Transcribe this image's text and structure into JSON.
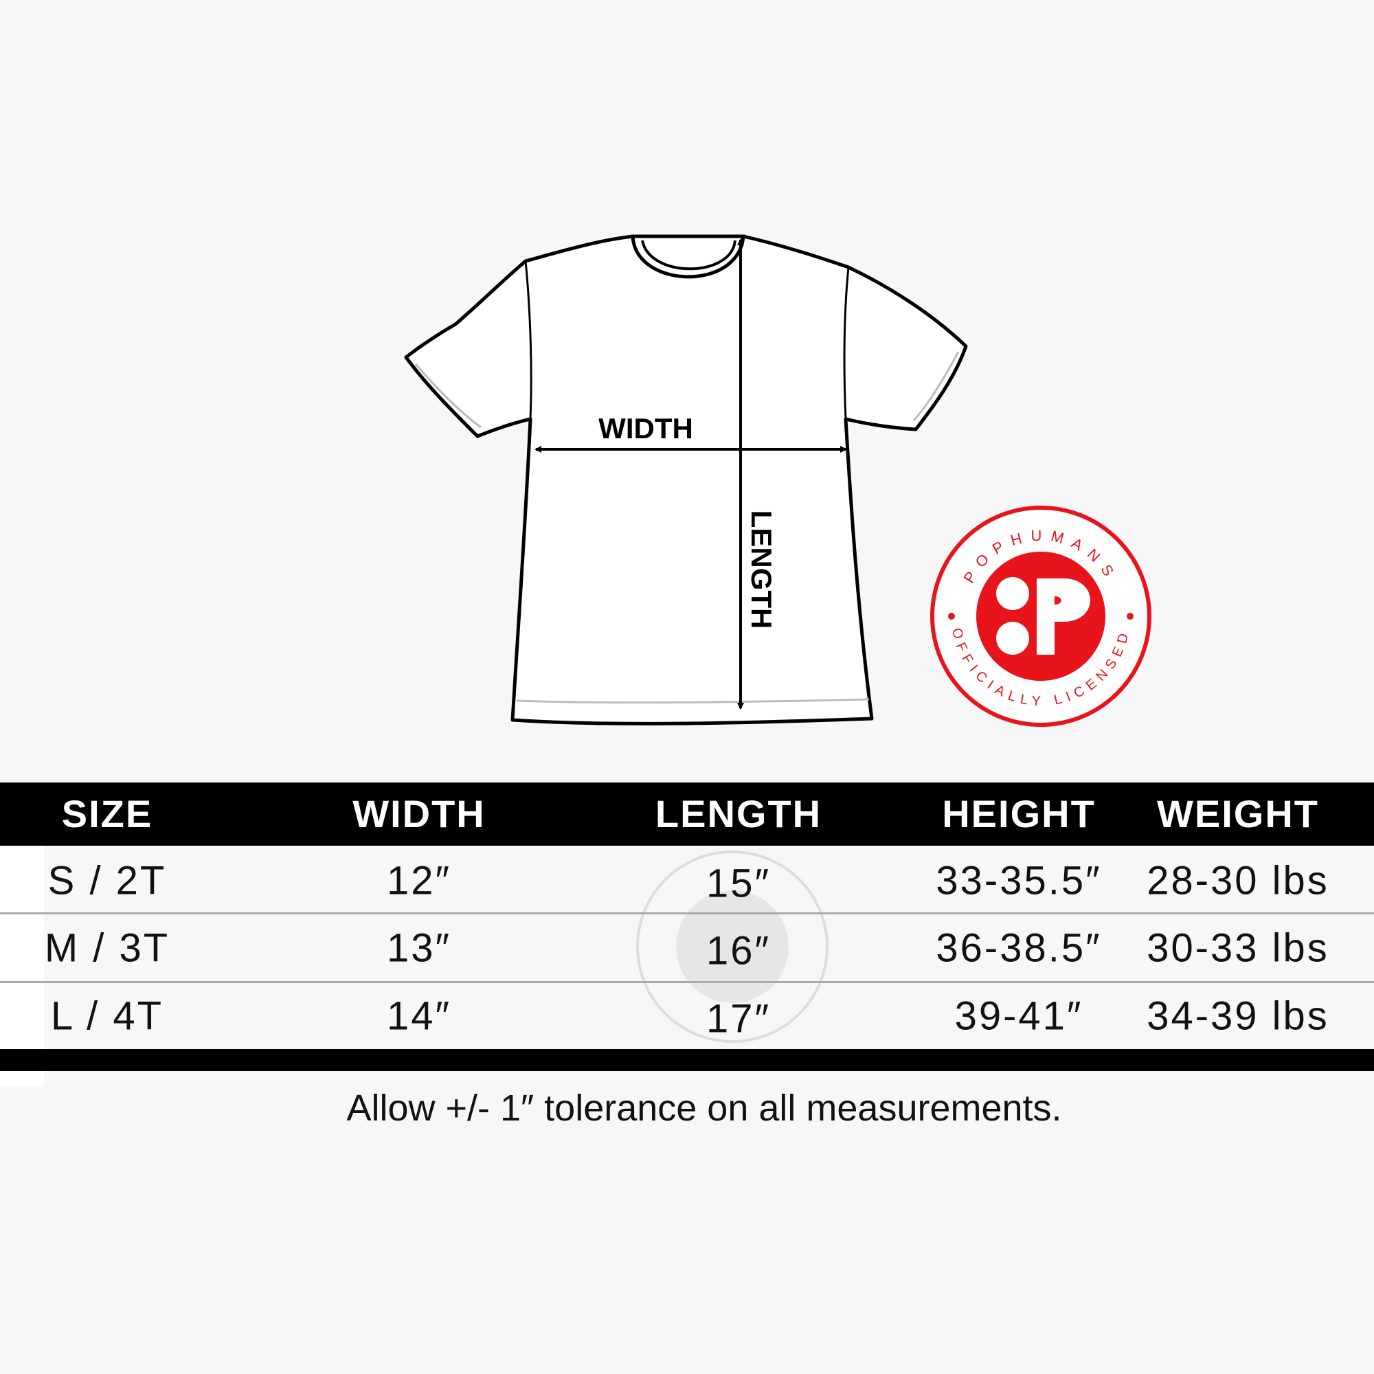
{
  "diagram": {
    "width_label": "WIDTH",
    "length_label": "LENGTH"
  },
  "logo": {
    "top_text": "POPHUMANS",
    "bottom_text": "OFFICIALLY LICENSED",
    "color": "#e8141b"
  },
  "table": {
    "headers": [
      "SIZE",
      "WIDTH",
      "LENGTH",
      "HEIGHT",
      "WEIGHT"
    ],
    "rows": [
      [
        "S / 2T",
        "12″",
        "15″",
        "33-35.5″",
        "28-30 lbs"
      ],
      [
        "M / 3T",
        "13″",
        "16″",
        "36-38.5″",
        "30-33 lbs"
      ],
      [
        "L / 4T",
        "14″",
        "17″",
        "39-41″",
        "34-39 lbs"
      ]
    ]
  },
  "note": "Allow +/- 1″ tolerance on all measurements."
}
